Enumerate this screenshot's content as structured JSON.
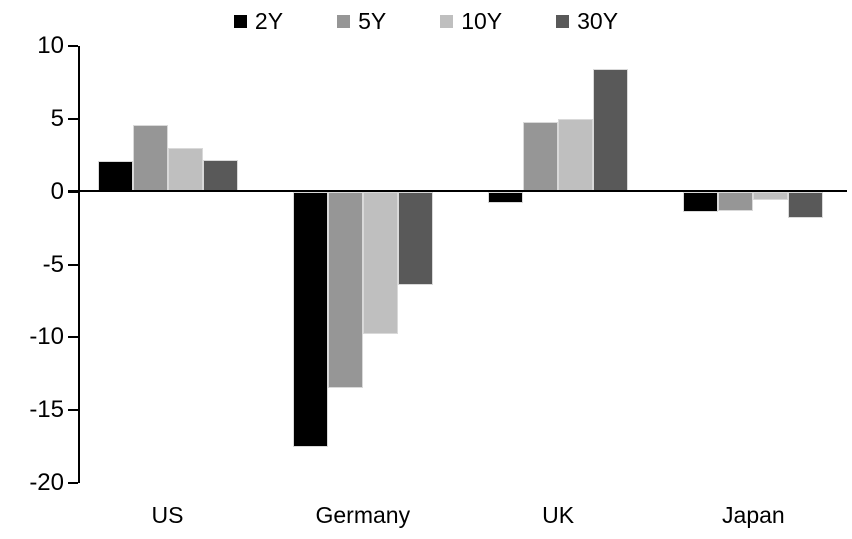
{
  "chart_data": {
    "type": "bar",
    "title": "",
    "xlabel": "",
    "ylabel": "",
    "categories": [
      "US",
      "Germany",
      "UK",
      "Japan"
    ],
    "series": [
      {
        "name": "2Y",
        "color": "#000000",
        "values": [
          2.1,
          -17.5,
          -0.8,
          -1.4
        ]
      },
      {
        "name": "5Y",
        "color": "#969696",
        "values": [
          4.6,
          -13.5,
          4.8,
          -1.3
        ]
      },
      {
        "name": "10Y",
        "color": "#bfbfbf",
        "values": [
          3.0,
          -9.8,
          5.0,
          -0.6
        ]
      },
      {
        "name": "30Y",
        "color": "#595959",
        "values": [
          2.2,
          -6.4,
          8.4,
          -1.8
        ]
      }
    ],
    "ylim": [
      -20,
      10
    ],
    "yticks": [
      10,
      5,
      0,
      -5,
      -10,
      -15,
      -20
    ],
    "legend_position": "top-center",
    "grid": false,
    "axis_color": "#000000",
    "background_color": "#ffffff",
    "bar_border_color": "#d9d9d9"
  }
}
